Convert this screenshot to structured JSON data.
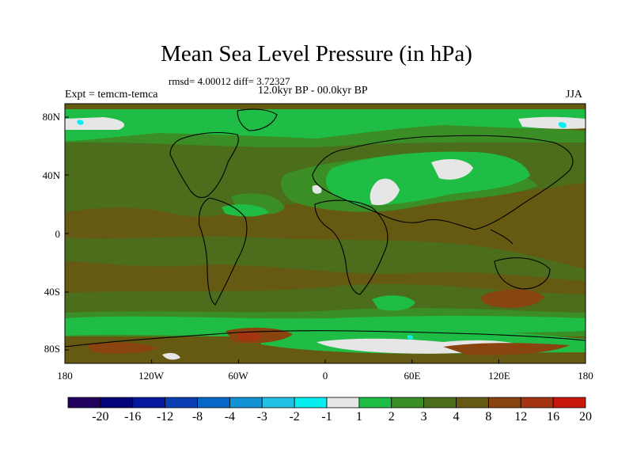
{
  "title": "Mean Sea Level Pressure (in hPa)",
  "stats": "rmsd= 4.00012  diff= 3.72327",
  "period": "12.0kyr BP - 00.0kyr BP",
  "experiment": "Expt = temcm-temca",
  "season": "JJA",
  "lat_labels": [
    "80N",
    "40N",
    "0",
    "40S",
    "80S"
  ],
  "lon_labels": [
    "180",
    "120W",
    "60W",
    "0",
    "60E",
    "120E",
    "180"
  ],
  "legend": {
    "colors": [
      "#21005e",
      "#020478",
      "#05199e",
      "#0a3fb4",
      "#0868c8",
      "#1291d5",
      "#23c1e3",
      "#06eef0",
      "#e6e6e6",
      "#1fbd46",
      "#3b8e25",
      "#4b6d1c",
      "#665a12",
      "#8a440f",
      "#a53510",
      "#c8170c"
    ],
    "labels": [
      "-20",
      "-16",
      "-12",
      "-8",
      "-4",
      "-3",
      "-2",
      "-1",
      "1",
      "2",
      "3",
      "4",
      "8",
      "12",
      "16",
      "20"
    ]
  },
  "map_colors": {
    "background": "#665a12",
    "light_green": "#1fbd46",
    "mid_green": "#3b8e25",
    "olive": "#4b6d1c",
    "white": "#e6e6e6",
    "cyan": "#06eef0",
    "rust": "#8a440f",
    "red": "#a53510"
  }
}
